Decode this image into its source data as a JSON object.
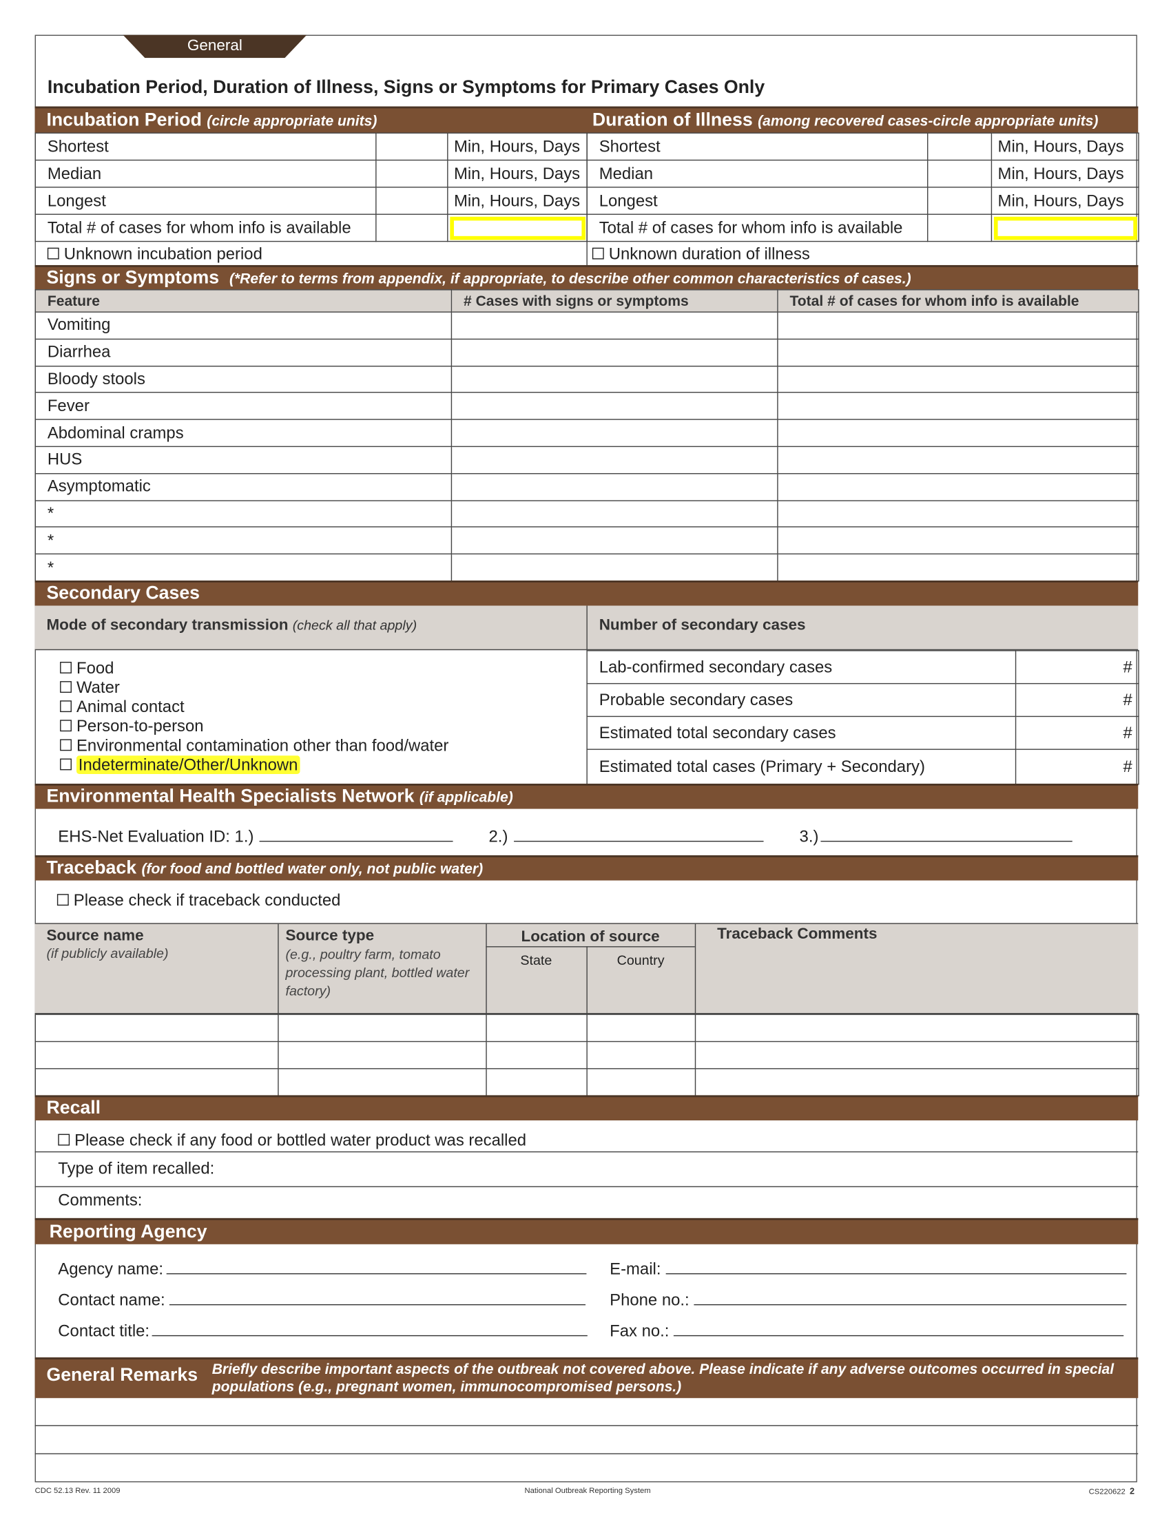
{
  "tab_label": "General",
  "title": "Incubation Period, Duration of Illness, Signs or Symptoms for Primary Cases Only",
  "incubation": {
    "heading": "Incubation Period",
    "note": "(circle appropriate units)",
    "rows": [
      "Shortest",
      "Median",
      "Longest",
      "Total # of cases for whom info is available"
    ],
    "units": "Min, Hours, Days",
    "unknown": "Unknown incubation period"
  },
  "duration": {
    "heading": "Duration of Illness",
    "note": "(among recovered cases-circle appropriate units)",
    "rows": [
      "Shortest",
      "Median",
      "Longest",
      "Total # of cases for whom info is available"
    ],
    "units": "Min, Hours, Days",
    "unknown": "Unknown duration of illness"
  },
  "signs": {
    "heading": "Signs or Symptoms",
    "note": "(*Refer to terms from appendix, if appropriate, to describe other common characteristics of cases.)",
    "columns": [
      "Feature",
      "# Cases with signs or symptoms",
      "Total # of cases for whom info is available"
    ],
    "features": [
      "Vomiting",
      "Diarrhea",
      "Bloody stools",
      "Fever",
      "Abdominal cramps",
      "HUS",
      "Asymptomatic",
      "*",
      "*",
      "*"
    ]
  },
  "secondary": {
    "heading": "Secondary Cases",
    "mode_label": "Mode of secondary transmission",
    "mode_note": "(check all that apply)",
    "number_label": "Number of secondary cases",
    "modes": [
      "Food",
      "Water",
      "Animal contact",
      "Person-to-person",
      "Environmental contamination other than food/water",
      "Indeterminate/Other/Unknown"
    ],
    "counts": [
      "Lab-confirmed secondary cases",
      "Probable secondary cases",
      "Estimated total secondary cases",
      "Estimated total cases (Primary + Secondary)"
    ],
    "hash": "#"
  },
  "ehs": {
    "heading": "Environmental Health Specialists Network",
    "note": "(if applicable)",
    "label": "EHS-Net Evaluation ID:",
    "ids": [
      "1.)",
      "2.)",
      "3.)"
    ]
  },
  "traceback": {
    "heading": "Traceback",
    "note": "(for food and bottled water only, not public water)",
    "check": "Please check if traceback conducted",
    "source_name": "Source name",
    "source_name_note": "(if publicly available)",
    "source_type": "Source type",
    "source_type_note": "(e.g., poultry farm, tomato processing plant, bottled water factory)",
    "location": "Location of source",
    "state": "State",
    "country": "Country",
    "comments": "Traceback Comments"
  },
  "recall": {
    "heading": "Recall",
    "check": "Please check if any food or bottled water product was recalled",
    "type": "Type of item recalled:",
    "comments": "Comments:"
  },
  "agency": {
    "heading": "Reporting Agency",
    "agency_name": "Agency name:",
    "contact_name": "Contact name:",
    "contact_title": "Contact title:",
    "email": "E-mail:",
    "phone": "Phone no.:",
    "fax": "Fax no.:"
  },
  "remarks": {
    "heading": "General Remarks",
    "note": "Briefly describe important aspects of the outbreak not covered above. Please indicate if any adverse outcomes occurred in special populations (e.g., pregnant women, immunocompromised persons.)"
  },
  "footer": {
    "left": "CDC 52.13  Rev. 11 2009",
    "center": "National Outbreak Reporting System",
    "right": "CS220622",
    "page": "2"
  },
  "colors": {
    "brown": "#7a5033",
    "dark_brown": "#4b3525",
    "gray": "#d9d4cf",
    "highlight": "#ffff00"
  }
}
